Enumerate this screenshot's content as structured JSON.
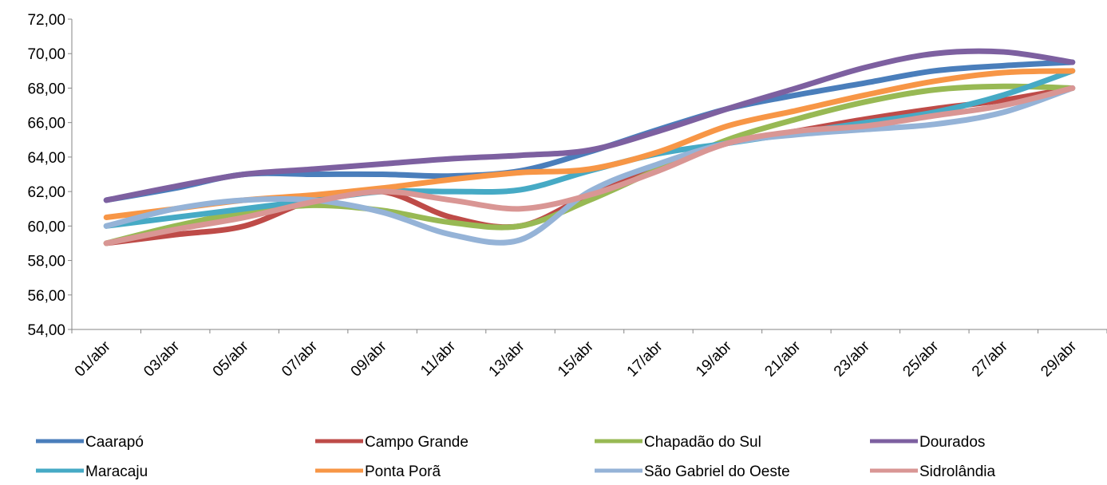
{
  "chart_data": {
    "type": "line",
    "categories": [
      "01/abr",
      "03/abr",
      "05/abr",
      "07/abr",
      "09/abr",
      "11/abr",
      "13/abr",
      "15/abr",
      "17/abr",
      "19/abr",
      "21/abr",
      "23/abr",
      "25/abr",
      "27/abr",
      "29/abr"
    ],
    "ylim": [
      54,
      72
    ],
    "yticks": [
      {
        "value": 54,
        "label": "54,00"
      },
      {
        "value": 56,
        "label": "56,00"
      },
      {
        "value": 58,
        "label": "58,00"
      },
      {
        "value": 60,
        "label": "60,00"
      },
      {
        "value": 62,
        "label": "62,00"
      },
      {
        "value": 64,
        "label": "64,00"
      },
      {
        "value": 66,
        "label": "66,00"
      },
      {
        "value": 68,
        "label": "68,00"
      },
      {
        "value": 70,
        "label": "70,00"
      },
      {
        "value": 72,
        "label": "72,00"
      }
    ],
    "grid": false,
    "smooth": true,
    "legend": "bottom",
    "series": [
      {
        "name": "Caarapó",
        "color": "#4a7ebb",
        "values": [
          61.5,
          62.2,
          63,
          63,
          63,
          62.9,
          63.2,
          64.3,
          65.6,
          66.8,
          67.6,
          68.3,
          69,
          69.3,
          69.5
        ]
      },
      {
        "name": "Campo Grande",
        "color": "#be4b48",
        "values": [
          59,
          59.5,
          60,
          61.5,
          62,
          60.5,
          60,
          61.8,
          63.3,
          64.8,
          65.5,
          66.2,
          66.8,
          67.3,
          68
        ]
      },
      {
        "name": "Chapadão do Sul",
        "color": "#98b954",
        "values": [
          59,
          60,
          60.8,
          61.2,
          60.9,
          60.2,
          60,
          61.5,
          63.3,
          65,
          66.2,
          67.2,
          67.9,
          68.1,
          68
        ]
      },
      {
        "name": "Dourados",
        "color": "#7d60a0",
        "values": [
          61.5,
          62.3,
          63,
          63.3,
          63.6,
          63.9,
          64.1,
          64.4,
          65.5,
          66.8,
          68,
          69.2,
          70,
          70.1,
          69.5
        ]
      },
      {
        "name": "Maracaju",
        "color": "#46aac5",
        "values": [
          60,
          60.5,
          61,
          61.5,
          62,
          62,
          62.1,
          63.2,
          64.2,
          64.8,
          65.4,
          66,
          66.6,
          67.6,
          69
        ]
      },
      {
        "name": "Ponta Porã",
        "color": "#f79646",
        "values": [
          60.5,
          61,
          61.5,
          61.8,
          62.2,
          62.7,
          63.1,
          63.3,
          64.3,
          65.8,
          66.7,
          67.6,
          68.4,
          68.9,
          69
        ]
      },
      {
        "name": "São Gabriel do Oeste",
        "color": "#95b3d7",
        "values": [
          60,
          61,
          61.5,
          61.5,
          60.8,
          59.5,
          59.2,
          62,
          63.6,
          64.8,
          65.3,
          65.6,
          65.9,
          66.6,
          68
        ]
      },
      {
        "name": "Sidrolândia",
        "color": "#d99694",
        "values": [
          59,
          59.8,
          60.5,
          61.4,
          62,
          61.5,
          61,
          61.8,
          63.2,
          64.8,
          65.5,
          65.8,
          66.4,
          67,
          68
        ]
      }
    ]
  }
}
